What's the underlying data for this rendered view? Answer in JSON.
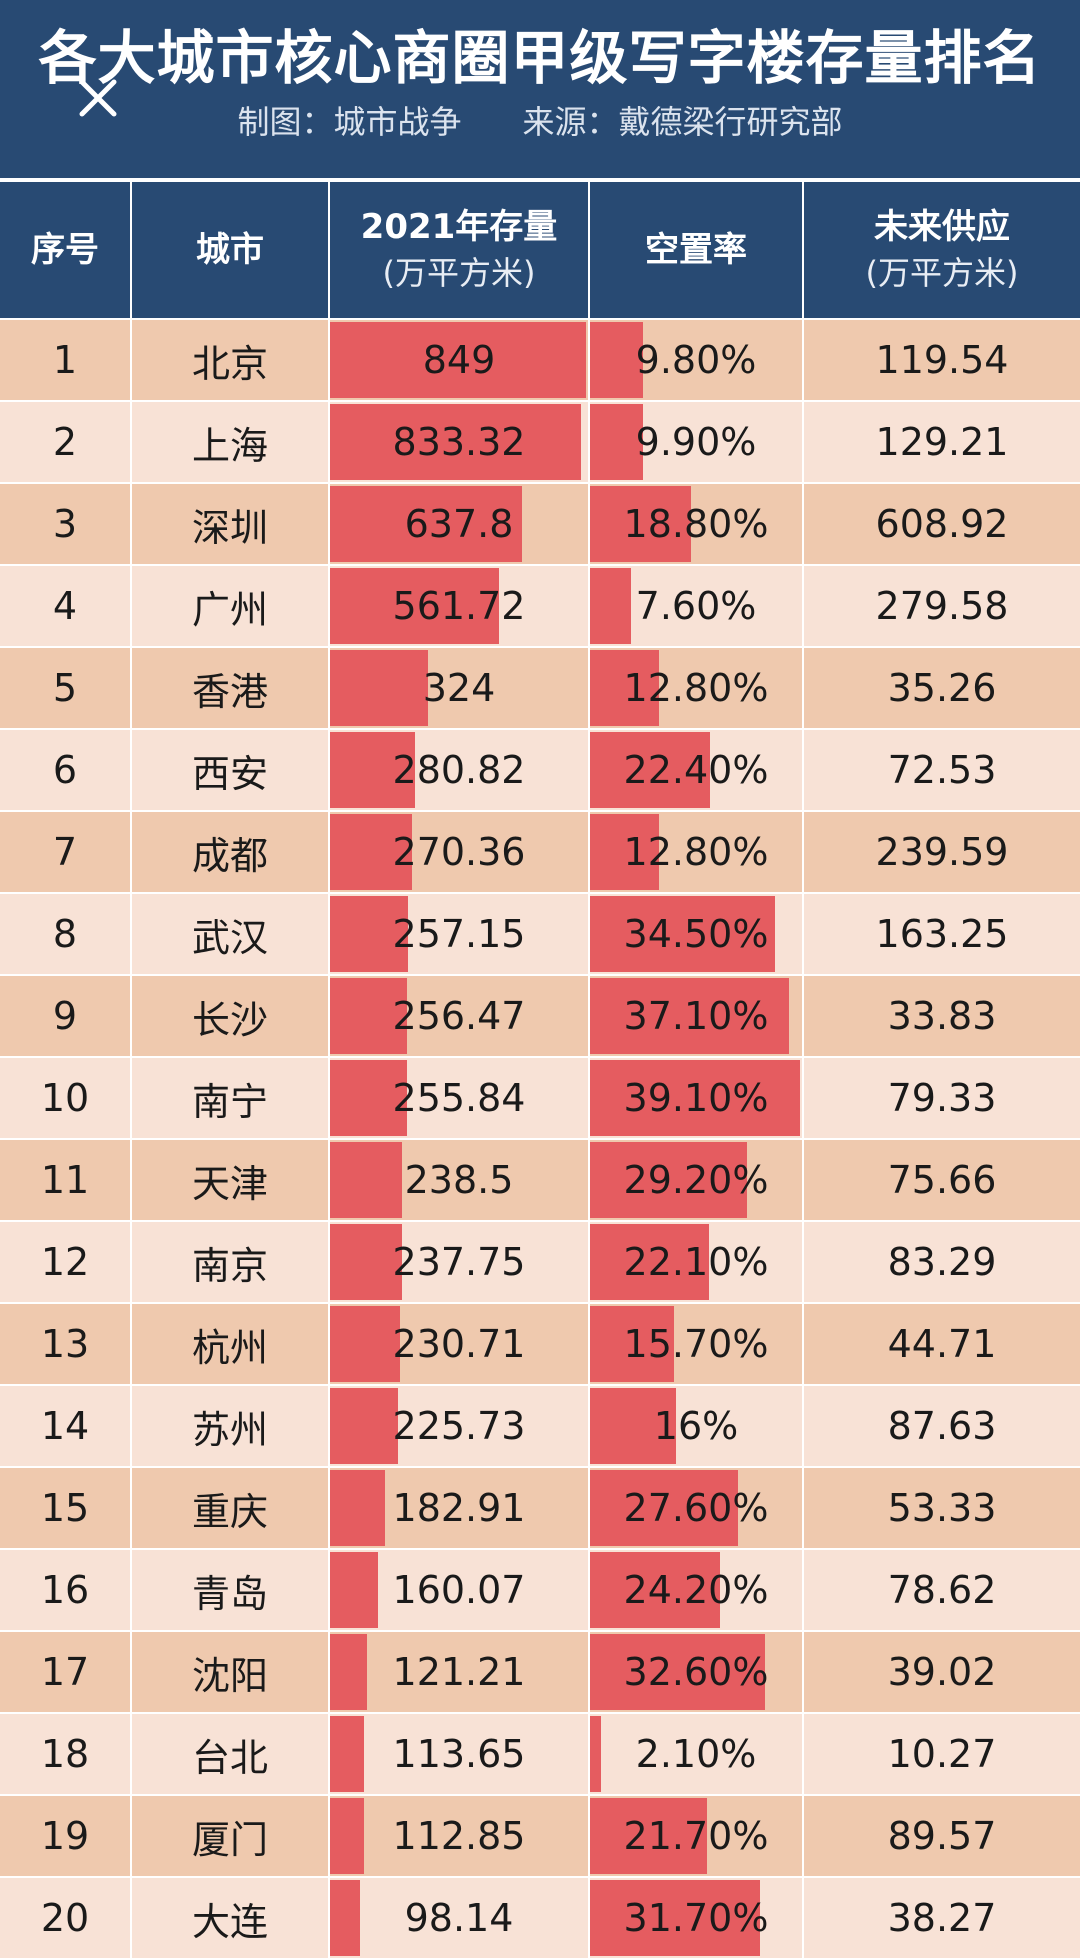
{
  "header": {
    "title": "各大城市核心商圈甲级写字楼存量排名",
    "subtitle": "制图：城市战争      来源：戴德梁行研究部"
  },
  "colors": {
    "header_bg": "#284a73",
    "row_dark": "#efc9ae",
    "row_light": "#f8e2d6",
    "bar": "#e55c60"
  },
  "icons": {
    "close": "close-icon"
  },
  "chart_data": {
    "type": "table",
    "columns": [
      {
        "line1": "序号",
        "line2": ""
      },
      {
        "line1": "城市",
        "line2": ""
      },
      {
        "line1": "2021年存量",
        "line2": "(万平方米)"
      },
      {
        "line1": "空置率",
        "line2": ""
      },
      {
        "line1": "未来供应",
        "line2": "(万平方米)"
      }
    ],
    "stock_max": 849,
    "vacancy_max": 39.1,
    "rows": [
      {
        "rank": "1",
        "city": "北京",
        "stock": 849,
        "stock_label": "849",
        "vacancy": 9.8,
        "vacancy_label": "9.80%",
        "supply": "119.54"
      },
      {
        "rank": "2",
        "city": "上海",
        "stock": 833.32,
        "stock_label": "833.32",
        "vacancy": 9.9,
        "vacancy_label": "9.90%",
        "supply": "129.21"
      },
      {
        "rank": "3",
        "city": "深圳",
        "stock": 637.8,
        "stock_label": "637.8",
        "vacancy": 18.8,
        "vacancy_label": "18.80%",
        "supply": "608.92"
      },
      {
        "rank": "4",
        "city": "广州",
        "stock": 561.72,
        "stock_label": "561.72",
        "vacancy": 7.6,
        "vacancy_label": "7.60%",
        "supply": "279.58"
      },
      {
        "rank": "5",
        "city": "香港",
        "stock": 324,
        "stock_label": "324",
        "vacancy": 12.8,
        "vacancy_label": "12.80%",
        "supply": "35.26"
      },
      {
        "rank": "6",
        "city": "西安",
        "stock": 280.82,
        "stock_label": "280.82",
        "vacancy": 22.4,
        "vacancy_label": "22.40%",
        "supply": "72.53"
      },
      {
        "rank": "7",
        "city": "成都",
        "stock": 270.36,
        "stock_label": "270.36",
        "vacancy": 12.8,
        "vacancy_label": "12.80%",
        "supply": "239.59"
      },
      {
        "rank": "8",
        "city": "武汉",
        "stock": 257.15,
        "stock_label": "257.15",
        "vacancy": 34.5,
        "vacancy_label": "34.50%",
        "supply": "163.25"
      },
      {
        "rank": "9",
        "city": "长沙",
        "stock": 256.47,
        "stock_label": "256.47",
        "vacancy": 37.1,
        "vacancy_label": "37.10%",
        "supply": "33.83"
      },
      {
        "rank": "10",
        "city": "南宁",
        "stock": 255.84,
        "stock_label": "255.84",
        "vacancy": 39.1,
        "vacancy_label": "39.10%",
        "supply": "79.33"
      },
      {
        "rank": "11",
        "city": "天津",
        "stock": 238.5,
        "stock_label": "238.5",
        "vacancy": 29.2,
        "vacancy_label": "29.20%",
        "supply": "75.66"
      },
      {
        "rank": "12",
        "city": "南京",
        "stock": 237.75,
        "stock_label": "237.75",
        "vacancy": 22.1,
        "vacancy_label": "22.10%",
        "supply": "83.29"
      },
      {
        "rank": "13",
        "city": "杭州",
        "stock": 230.71,
        "stock_label": "230.71",
        "vacancy": 15.7,
        "vacancy_label": "15.70%",
        "supply": "44.71"
      },
      {
        "rank": "14",
        "city": "苏州",
        "stock": 225.73,
        "stock_label": "225.73",
        "vacancy": 16,
        "vacancy_label": "16%",
        "supply": "87.63"
      },
      {
        "rank": "15",
        "city": "重庆",
        "stock": 182.91,
        "stock_label": "182.91",
        "vacancy": 27.6,
        "vacancy_label": "27.60%",
        "supply": "53.33"
      },
      {
        "rank": "16",
        "city": "青岛",
        "stock": 160.07,
        "stock_label": "160.07",
        "vacancy": 24.2,
        "vacancy_label": "24.20%",
        "supply": "78.62"
      },
      {
        "rank": "17",
        "city": "沈阳",
        "stock": 121.21,
        "stock_label": "121.21",
        "vacancy": 32.6,
        "vacancy_label": "32.60%",
        "supply": "39.02"
      },
      {
        "rank": "18",
        "city": "台北",
        "stock": 113.65,
        "stock_label": "113.65",
        "vacancy": 2.1,
        "vacancy_label": "2.10%",
        "supply": "10.27"
      },
      {
        "rank": "19",
        "city": "厦门",
        "stock": 112.85,
        "stock_label": "112.85",
        "vacancy": 21.7,
        "vacancy_label": "21.70%",
        "supply": "89.57"
      },
      {
        "rank": "20",
        "city": "大连",
        "stock": 98.14,
        "stock_label": "98.14",
        "vacancy": 31.7,
        "vacancy_label": "31.70%",
        "supply": "38.27"
      }
    ]
  }
}
